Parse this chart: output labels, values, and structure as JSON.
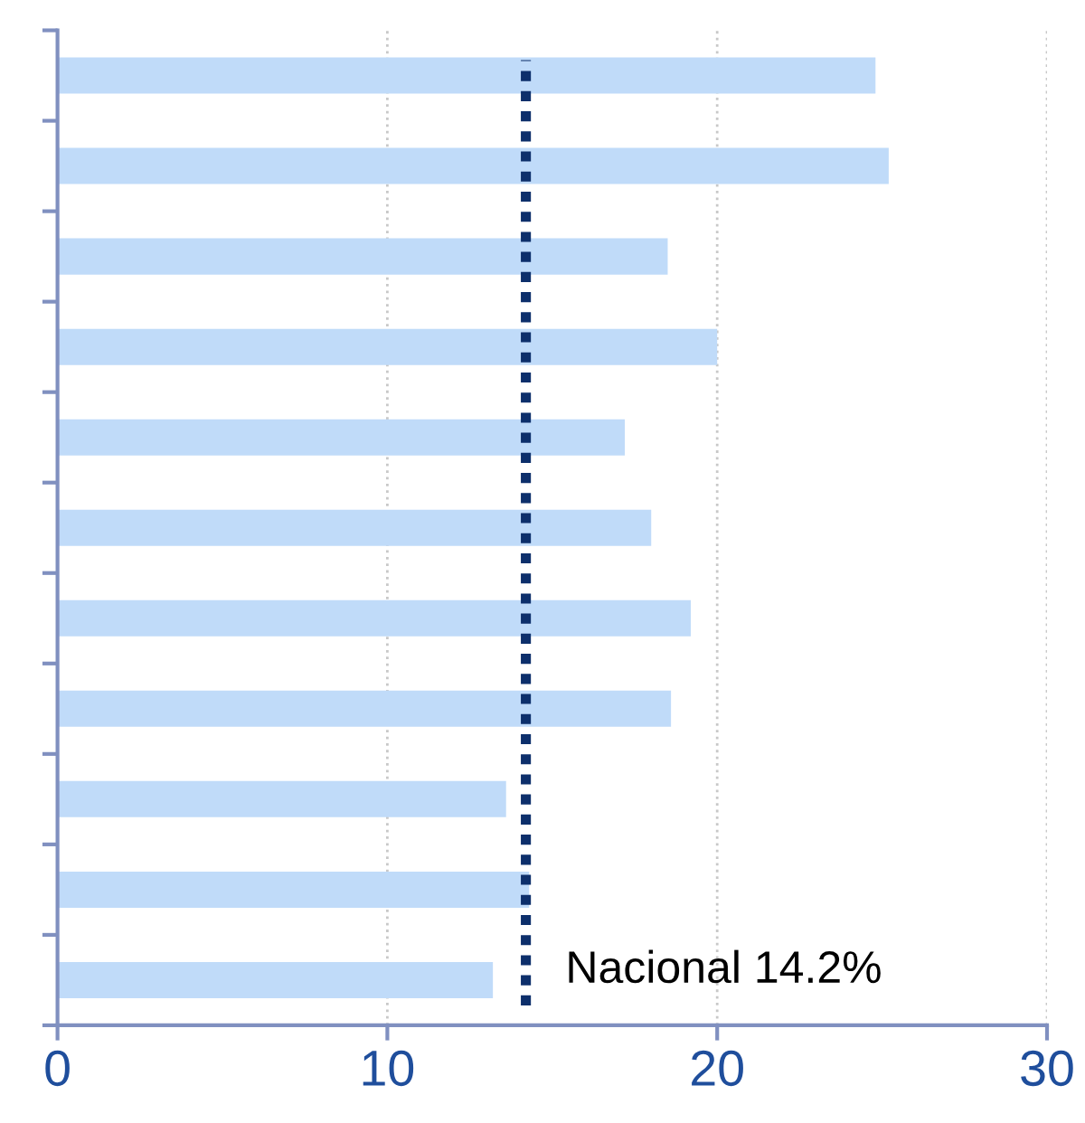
{
  "chart_data": {
    "type": "bar",
    "orientation": "horizontal",
    "categories": [
      null,
      null,
      null,
      null,
      null,
      null,
      null,
      null,
      null,
      null,
      null
    ],
    "values": [
      24.8,
      25.2,
      18.5,
      20.0,
      17.2,
      18.0,
      19.2,
      18.6,
      13.6,
      14.3,
      13.2
    ],
    "color": "#c0dbf9",
    "xlim": [
      0,
      30
    ],
    "xticks": [
      0,
      10,
      20,
      30
    ],
    "grid": "x",
    "tick_labels": "x",
    "ref_lines": [
      {
        "axis": "x",
        "value": 14.2,
        "label": "Nacional 14.2%",
        "color": "#0d2f6b",
        "line_style": "dotted"
      }
    ]
  }
}
